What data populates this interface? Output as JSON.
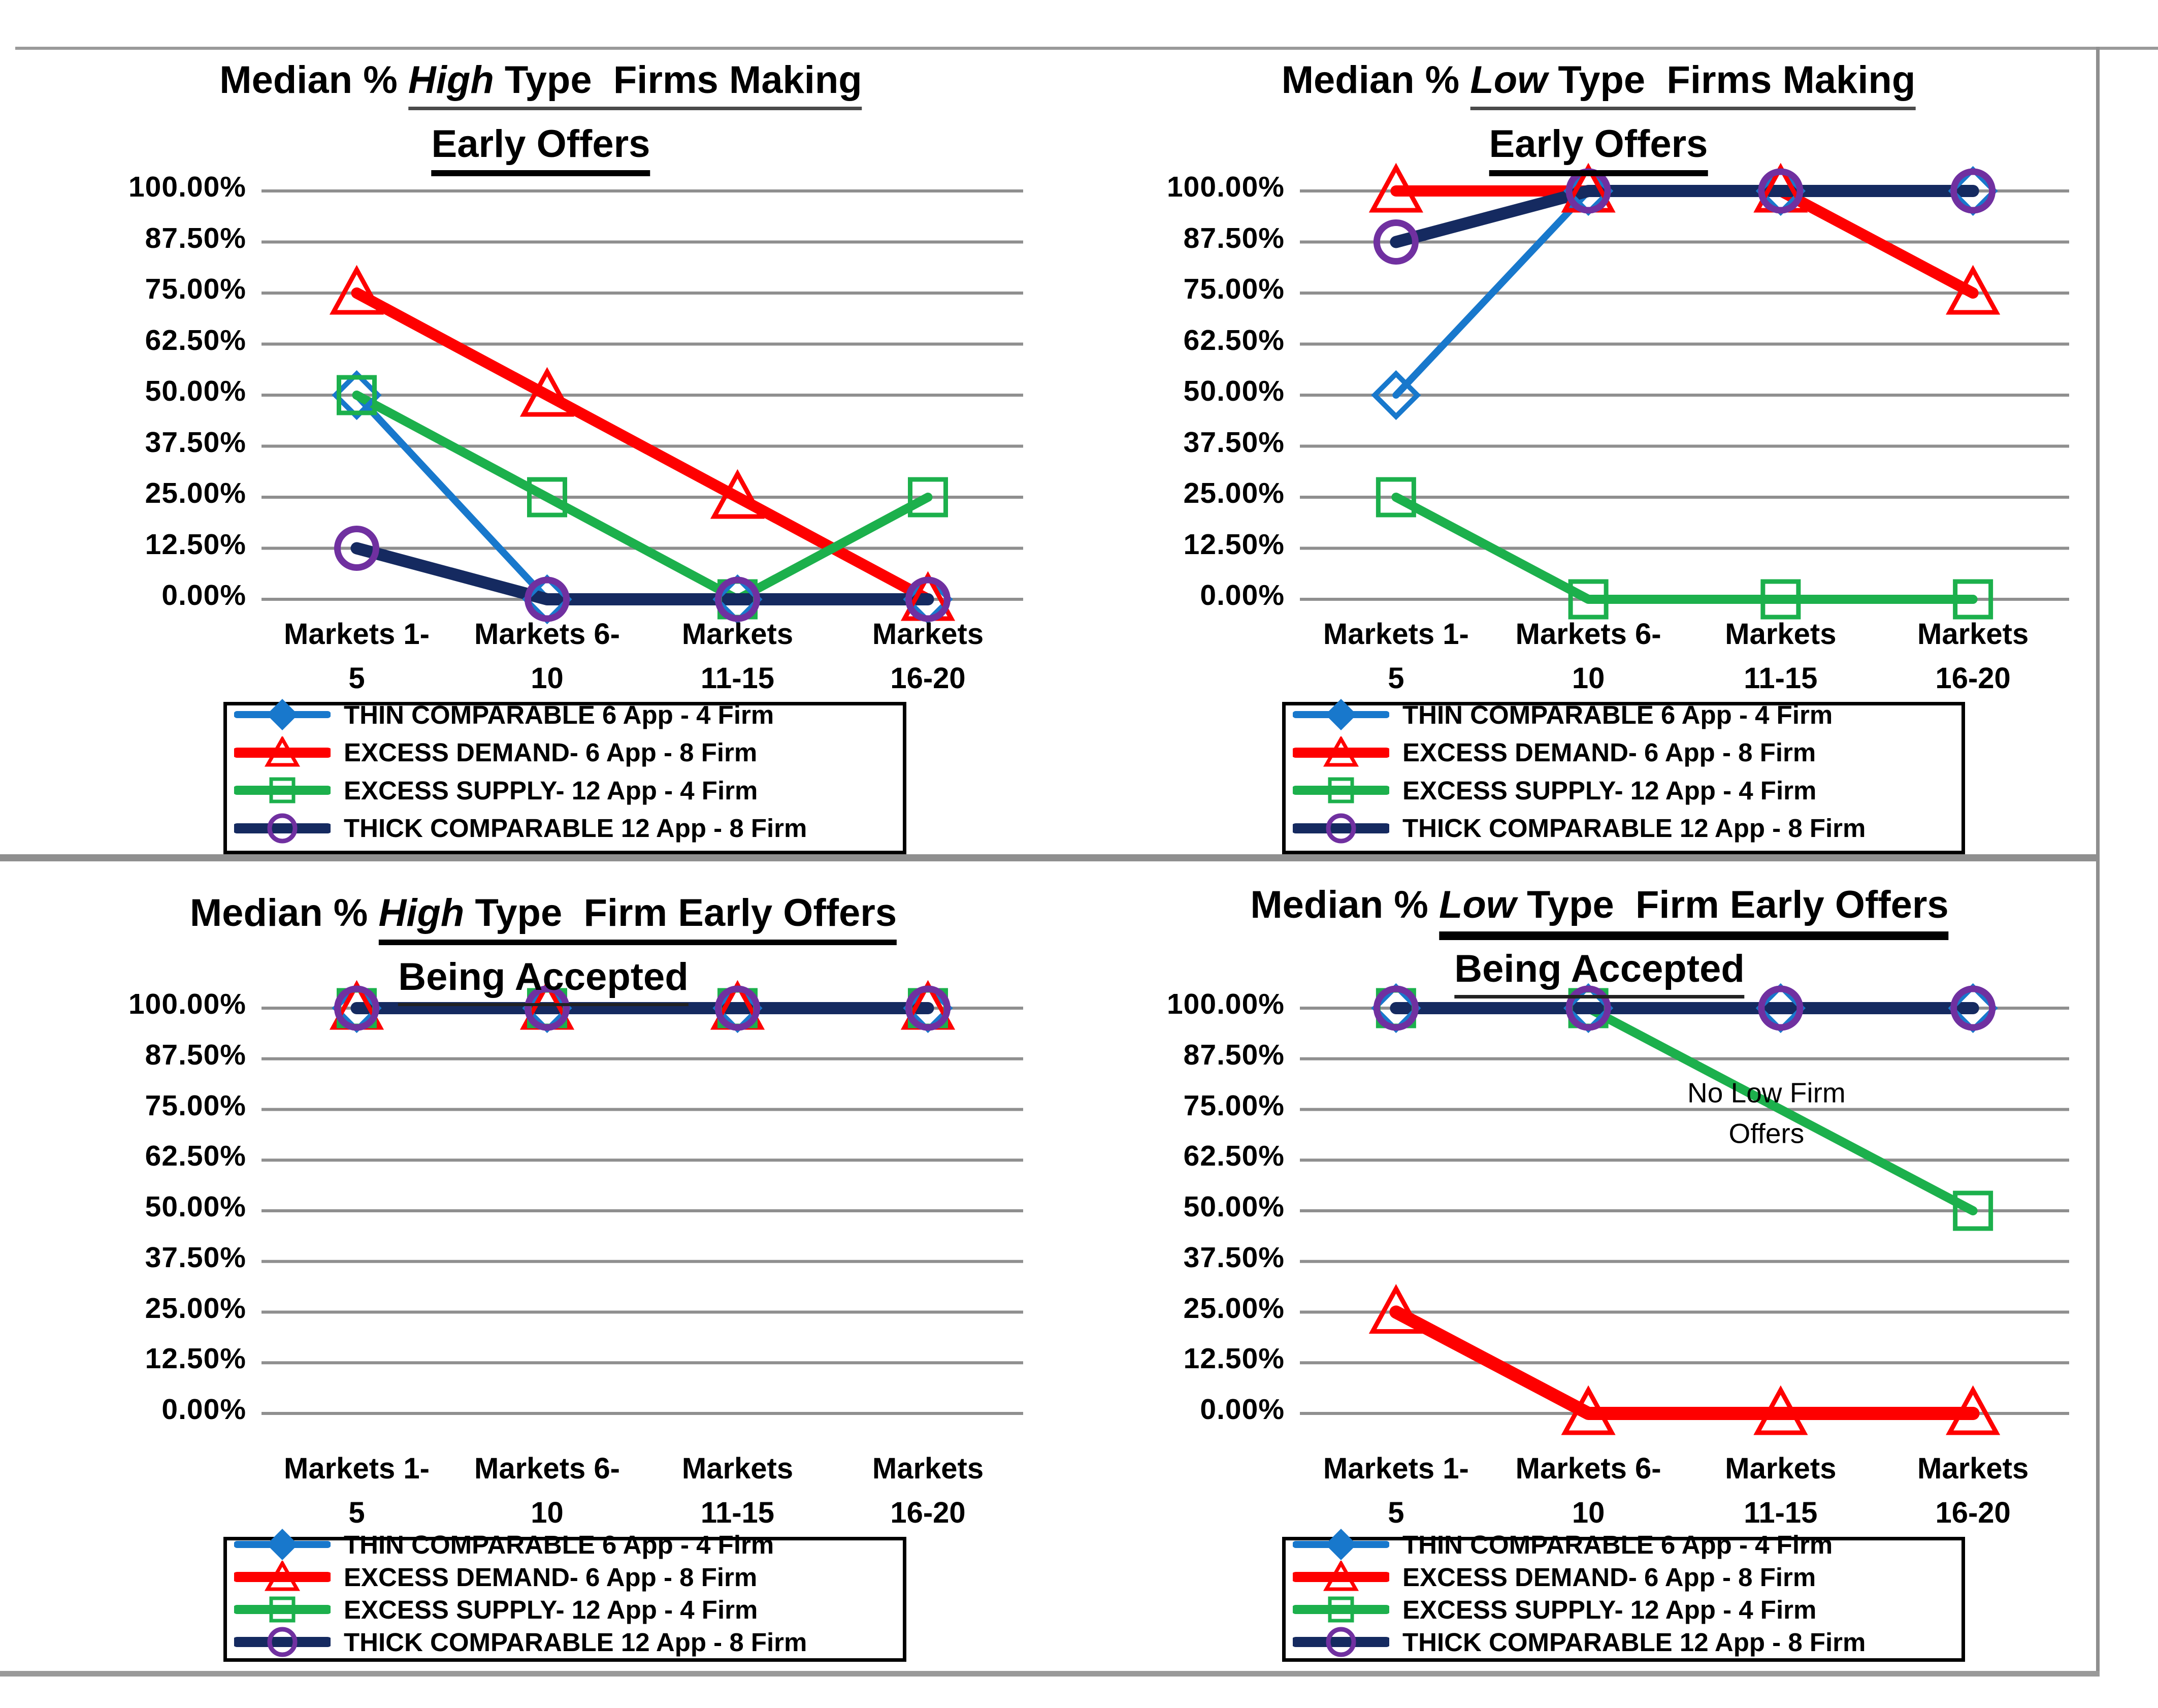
{
  "colors": {
    "thin_comparable_blue": "#1878CC",
    "excess_demand_red": "#FE0000",
    "excess_supply_green": "#1CB04C",
    "thick_comparable_navy": "#152A60",
    "thick_marker_purple": "#7030A0",
    "gridline_gray": "#8F8F8F",
    "frame_gray": "#9A9A9A"
  },
  "chart_data": [
    {
      "type": "line",
      "title_prefix": "Median % ",
      "title_em": "High",
      "title_rest": " Type  Firms Making",
      "title_line2": "Early Offers",
      "categories": [
        "Markets 1-5",
        "Markets 6-10",
        "Markets 11-15",
        "Markets 16-20"
      ],
      "categories_wrapped": [
        [
          "Markets 1-",
          "5"
        ],
        [
          "Markets 6-",
          "10"
        ],
        [
          "Markets",
          "11-15"
        ],
        [
          "Markets",
          "16-20"
        ]
      ],
      "y_ticks": [
        "100.00%",
        "87.50%",
        "75.00%",
        "62.50%",
        "50.00%",
        "37.50%",
        "25.00%",
        "12.50%",
        "0.00%"
      ],
      "ylim": [
        0,
        100
      ],
      "ytick_step": 12.5,
      "grid": true,
      "legend_position": "bottom",
      "series": [
        {
          "name": "THIN COMPARABLE 6 App - 4 Firm",
          "color": "#1878CC",
          "marker": "diamond",
          "marker_color": "#1878CC",
          "width": 14,
          "values": [
            50,
            0,
            0,
            0
          ]
        },
        {
          "name": "EXCESS DEMAND- 6 App - 8 Firm",
          "color": "#FE0000",
          "marker": "triangle",
          "marker_color": "#FE0000",
          "width": 22,
          "values": [
            75,
            50,
            25,
            0
          ]
        },
        {
          "name": "EXCESS SUPPLY- 12 App - 4 Firm",
          "color": "#1CB04C",
          "marker": "square",
          "marker_color": "#1CB04C",
          "width": 18,
          "values": [
            50,
            25,
            0,
            25
          ]
        },
        {
          "name": "THICK COMPARABLE 12 App - 8 Firm",
          "color": "#152A60",
          "marker": "circle",
          "marker_color": "#7030A0",
          "width": 24,
          "values": [
            12.5,
            0,
            0,
            0
          ]
        }
      ],
      "annotation": null
    },
    {
      "type": "line",
      "title_prefix": "Median % ",
      "title_em": "Low",
      "title_rest": " Type  Firms Making",
      "title_line2": "Early Offers",
      "categories": [
        "Markets 1-5",
        "Markets 6-10",
        "Markets 11-15",
        "Markets 16-20"
      ],
      "categories_wrapped": [
        [
          "Markets 1-",
          "5"
        ],
        [
          "Markets 6-",
          "10"
        ],
        [
          "Markets",
          "11-15"
        ],
        [
          "Markets",
          "16-20"
        ]
      ],
      "y_ticks": [
        "100.00%",
        "87.50%",
        "75.00%",
        "62.50%",
        "50.00%",
        "37.50%",
        "25.00%",
        "12.50%",
        "0.00%"
      ],
      "ylim": [
        0,
        100
      ],
      "ytick_step": 12.5,
      "grid": true,
      "legend_position": "bottom",
      "series": [
        {
          "name": "THIN COMPARABLE 6 App - 4 Firm",
          "color": "#1878CC",
          "marker": "diamond",
          "marker_color": "#1878CC",
          "width": 14,
          "values": [
            50,
            100,
            100,
            100
          ]
        },
        {
          "name": "EXCESS DEMAND- 6 App - 8 Firm",
          "color": "#FE0000",
          "marker": "triangle",
          "marker_color": "#FE0000",
          "width": 22,
          "values": [
            100,
            100,
            100,
            75
          ]
        },
        {
          "name": "EXCESS SUPPLY- 12 App - 4 Firm",
          "color": "#1CB04C",
          "marker": "square",
          "marker_color": "#1CB04C",
          "width": 18,
          "values": [
            25,
            0,
            0,
            0
          ]
        },
        {
          "name": "THICK COMPARABLE 12 App - 8 Firm",
          "color": "#152A60",
          "marker": "circle",
          "marker_color": "#7030A0",
          "width": 24,
          "values": [
            87.5,
            100,
            100,
            100
          ]
        }
      ],
      "annotation": null
    },
    {
      "type": "line",
      "title_prefix": "Median % ",
      "title_em": "High",
      "title_rest": " Type  Firm Early Offers",
      "title_line2": "Being Accepted",
      "categories": [
        "Markets 1-5",
        "Markets 6-10",
        "Markets 11-15",
        "Markets 16-20"
      ],
      "categories_wrapped": [
        [
          "Markets 1-",
          "5"
        ],
        [
          "Markets 6-",
          "10"
        ],
        [
          "Markets",
          "11-15"
        ],
        [
          "Markets",
          "16-20"
        ]
      ],
      "y_ticks": [
        "100.00%",
        "87.50%",
        "75.00%",
        "62.50%",
        "50.00%",
        "37.50%",
        "25.00%",
        "12.50%",
        "0.00%"
      ],
      "ylim": [
        0,
        100
      ],
      "ytick_step": 12.5,
      "grid": true,
      "legend_position": "bottom",
      "series": [
        {
          "name": "THIN COMPARABLE 6 App - 4 Firm",
          "color": "#1878CC",
          "marker": "diamond",
          "marker_color": "#1878CC",
          "width": 14,
          "values": [
            100,
            100,
            100,
            100
          ]
        },
        {
          "name": "EXCESS DEMAND- 6 App - 8 Firm",
          "color": "#FE0000",
          "marker": "triangle",
          "marker_color": "#FE0000",
          "width": 22,
          "values": [
            100,
            100,
            100,
            100
          ]
        },
        {
          "name": "EXCESS SUPPLY- 12 App - 4 Firm",
          "color": "#1CB04C",
          "marker": "square",
          "marker_color": "#1CB04C",
          "width": 18,
          "values": [
            100,
            100,
            100,
            100
          ]
        },
        {
          "name": "THICK COMPARABLE 12 App - 8 Firm",
          "color": "#152A60",
          "marker": "circle",
          "marker_color": "#7030A0",
          "width": 24,
          "values": [
            100,
            100,
            100,
            100
          ]
        }
      ],
      "annotation": null
    },
    {
      "type": "line",
      "title_prefix": "Median % ",
      "title_em": "Low",
      "title_rest": " Type  Firm Early Offers",
      "title_line2": "Being Accepted",
      "categories": [
        "Markets 1-5",
        "Markets 6-10",
        "Markets 11-15",
        "Markets 16-20"
      ],
      "categories_wrapped": [
        [
          "Markets 1-",
          "5"
        ],
        [
          "Markets 6-",
          "10"
        ],
        [
          "Markets",
          "11-15"
        ],
        [
          "Markets",
          "16-20"
        ]
      ],
      "y_ticks": [
        "100.00%",
        "87.50%",
        "75.00%",
        "62.50%",
        "50.00%",
        "37.50%",
        "25.00%",
        "12.50%",
        "0.00%"
      ],
      "ylim": [
        0,
        100
      ],
      "ytick_step": 12.5,
      "grid": true,
      "legend_position": "bottom",
      "series": [
        {
          "name": "THIN COMPARABLE 6 App - 4 Firm",
          "color": "#1878CC",
          "marker": "diamond",
          "marker_color": "#1878CC",
          "width": 14,
          "values": [
            100,
            100,
            100,
            100
          ]
        },
        {
          "name": "EXCESS DEMAND- 6 App - 8 Firm",
          "color": "#FE0000",
          "marker": "triangle",
          "marker_color": "#FE0000",
          "width": 26,
          "values": [
            25,
            0,
            0,
            0
          ]
        },
        {
          "name": "EXCESS SUPPLY- 12 App - 4 Firm",
          "color": "#1CB04C",
          "marker": "square",
          "marker_color": "#1CB04C",
          "width": 18,
          "values": [
            100,
            100,
            null,
            50
          ]
        },
        {
          "name": "THICK COMPARABLE 12 App - 8 Firm",
          "color": "#152A60",
          "marker": "circle",
          "marker_color": "#7030A0",
          "width": 24,
          "values": [
            100,
            100,
            100,
            100
          ]
        }
      ],
      "annotation": {
        "line1": "No Low Firm",
        "line2": "Offers",
        "cat_index": 2,
        "value": 74
      }
    }
  ]
}
